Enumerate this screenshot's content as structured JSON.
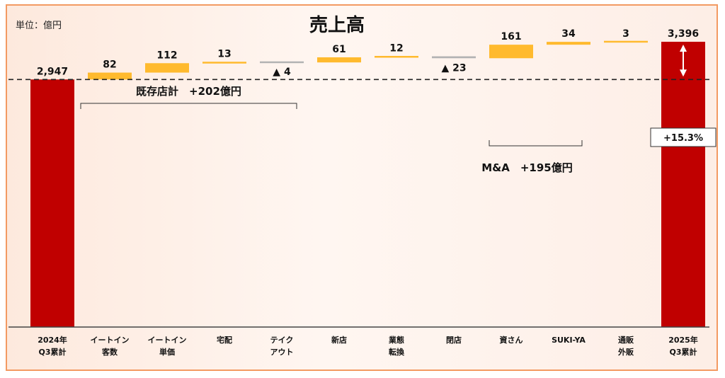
{
  "unit_label": "単位：億円",
  "colors": {
    "total": "#c00000",
    "increase": "#ffba2e",
    "decrease": "#b3b3b3"
  },
  "chart_data": {
    "type": "bar",
    "subtype": "waterfall",
    "title": "売上高",
    "ylim": [
      0,
      3396
    ],
    "baseline_value": 2947,
    "categories": [
      [
        "2024年",
        "Q3累計"
      ],
      [
        "イートイン",
        "客数"
      ],
      [
        "イートイン",
        "単価"
      ],
      [
        "宅配"
      ],
      [
        "テイク",
        "アウト"
      ],
      [
        "新店"
      ],
      [
        "業態",
        "転換"
      ],
      [
        "閉店"
      ],
      [
        "資さん"
      ],
      [
        "SUKI-YA"
      ],
      [
        "通販",
        "外販"
      ],
      [
        "2025年",
        "Q3累計"
      ]
    ],
    "values": [
      2947,
      82,
      112,
      13,
      -4,
      61,
      12,
      -23,
      161,
      34,
      3,
      3396
    ],
    "kinds": [
      "total",
      "increase",
      "increase",
      "increase",
      "decrease",
      "increase",
      "increase",
      "decrease",
      "increase",
      "increase",
      "increase",
      "total"
    ],
    "value_labels": [
      "2,947",
      "82",
      "112",
      "13",
      "▲ 4",
      "61",
      "12",
      "▲ 23",
      "161",
      "34",
      "3",
      "3,396"
    ],
    "groups": [
      {
        "label": "既存店計　+202億円",
        "from": 1,
        "to": 4
      },
      {
        "label": "M&A　+195億円",
        "from": 8,
        "to": 9
      }
    ],
    "growth_label": "+15.3%"
  }
}
